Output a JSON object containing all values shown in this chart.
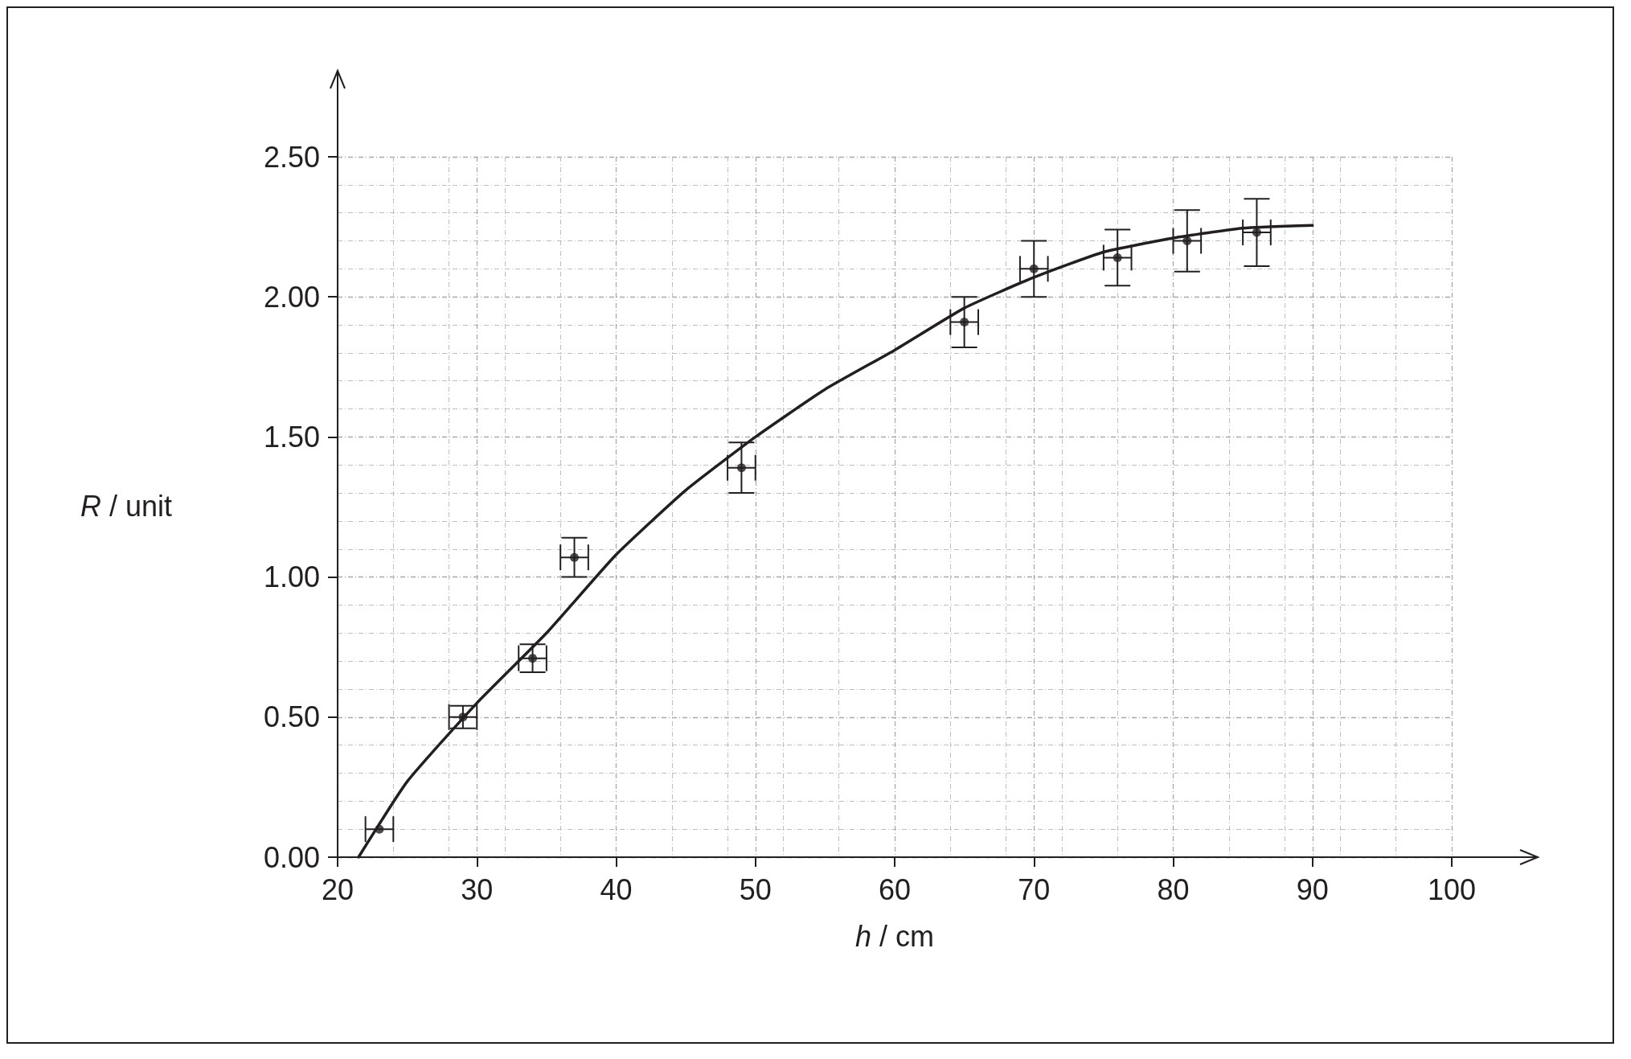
{
  "chart_data": {
    "type": "scatter",
    "xlabel": "h / cm",
    "ylabel": "R / unit",
    "xlim": [
      20,
      100
    ],
    "ylim": [
      0,
      2.5
    ],
    "xticks": [
      20,
      30,
      40,
      50,
      60,
      70,
      80,
      90,
      100
    ],
    "yticks": [
      {
        "value": 0,
        "label": "0.00"
      },
      {
        "value": 0.5,
        "label": "0.50"
      },
      {
        "value": 1,
        "label": "1.00"
      },
      {
        "value": 1.5,
        "label": "1.50"
      },
      {
        "value": 2,
        "label": "2.00"
      },
      {
        "value": 2.5,
        "label": "2.50"
      }
    ],
    "grid": true,
    "marker": "circle",
    "legend": false,
    "series": [
      {
        "color": "#231f20",
        "x": [
          23,
          29,
          34,
          37,
          49,
          65,
          70,
          76,
          81,
          86
        ],
        "values": [
          0.1,
          0.5,
          0.71,
          1.07,
          1.39,
          1.91,
          2.1,
          2.14,
          2.2,
          2.23
        ],
        "errors": [
          null,
          0.04,
          0.05,
          0.07,
          0.09,
          0.09,
          0.1,
          0.1,
          0.11,
          0.12
        ],
        "xerrors": [
          1,
          1,
          1,
          1,
          1,
          1,
          1,
          1,
          1,
          1
        ]
      },
      {
        "type": "line",
        "color": "#231f20",
        "marker": "none",
        "line_style": "solid",
        "x": [
          21.5,
          25,
          30,
          35,
          40,
          45,
          50,
          55,
          60,
          65,
          70,
          75,
          80,
          85,
          90
        ],
        "values": [
          0,
          0.27,
          0.55,
          0.8,
          1.08,
          1.31,
          1.5,
          1.67,
          1.81,
          1.96,
          2.07,
          2.16,
          2.21,
          2.245,
          2.255
        ]
      }
    ]
  }
}
